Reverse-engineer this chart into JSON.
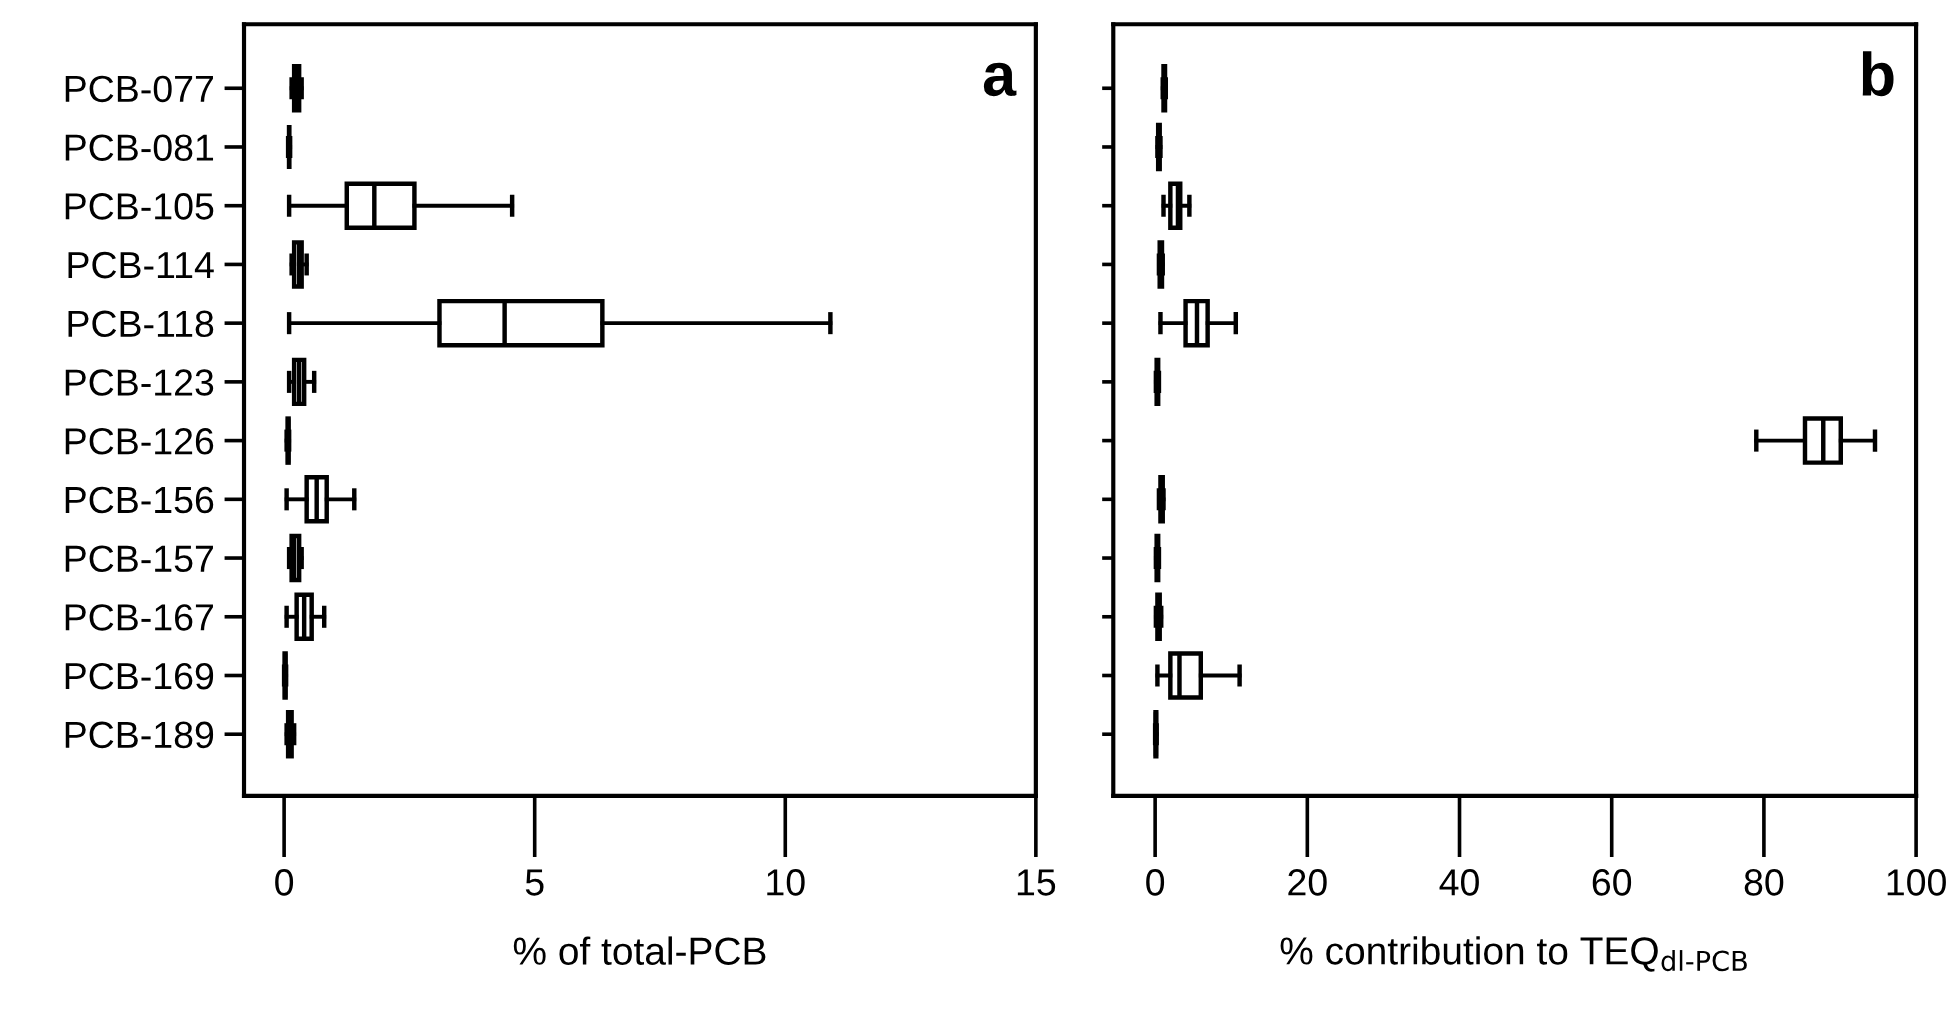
{
  "chart_data": [
    {
      "type": "box",
      "xlabel": "% of total-PCB",
      "orientation": "horizontal",
      "categories": [
        "PCB-077",
        "PCB-081",
        "PCB-105",
        "PCB-114",
        "PCB-118",
        "PCB-123",
        "PCB-126",
        "PCB-156",
        "PCB-157",
        "PCB-167",
        "PCB-169",
        "PCB-189"
      ],
      "boxes": [
        {
          "low": 0.15,
          "q1": 0.2,
          "median": 0.25,
          "q3": 0.3,
          "high": 0.35
        },
        {
          "low": 0.08,
          "q1": 0.1,
          "median": 0.1,
          "q3": 0.1,
          "high": 0.12
        },
        {
          "low": 0.1,
          "q1": 1.25,
          "median": 1.8,
          "q3": 2.6,
          "high": 4.55
        },
        {
          "low": 0.15,
          "q1": 0.2,
          "median": 0.3,
          "q3": 0.35,
          "high": 0.45
        },
        {
          "low": 0.1,
          "q1": 3.1,
          "median": 4.4,
          "q3": 6.35,
          "high": 10.9
        },
        {
          "low": 0.1,
          "q1": 0.2,
          "median": 0.3,
          "q3": 0.4,
          "high": 0.6
        },
        {
          "low": 0.05,
          "q1": 0.07,
          "median": 0.08,
          "q3": 0.09,
          "high": 0.1
        },
        {
          "low": 0.05,
          "q1": 0.45,
          "median": 0.65,
          "q3": 0.85,
          "high": 1.4
        },
        {
          "low": 0.1,
          "q1": 0.15,
          "median": 0.2,
          "q3": 0.3,
          "high": 0.35
        },
        {
          "low": 0.05,
          "q1": 0.25,
          "median": 0.4,
          "q3": 0.55,
          "high": 0.8
        },
        {
          "low": 0.0,
          "q1": 0.01,
          "median": 0.02,
          "q3": 0.03,
          "high": 0.04
        },
        {
          "low": 0.05,
          "q1": 0.08,
          "median": 0.1,
          "q3": 0.15,
          "high": 0.2
        }
      ],
      "xlim": [
        -0.8,
        15
      ],
      "xticks": [
        0,
        5,
        10,
        15
      ],
      "annotations": [
        "a"
      ],
      "grid": false
    },
    {
      "type": "box",
      "xlabel": "% contribution to TEQ$_{dl-PCB}$",
      "orientation": "horizontal",
      "tick_labels": "x",
      "categories": [
        null,
        null,
        null,
        null,
        null,
        null,
        null,
        null,
        null,
        null,
        null,
        null
      ],
      "boxes": [
        {
          "low": 1.0,
          "q1": 1.1,
          "median": 1.2,
          "q3": 1.3,
          "high": 1.4
        },
        {
          "low": 0.3,
          "q1": 0.4,
          "median": 0.5,
          "q3": 0.6,
          "high": 0.7
        },
        {
          "low": 1.1,
          "q1": 2.0,
          "median": 3.0,
          "q3": 3.3,
          "high": 4.5
        },
        {
          "low": 0.5,
          "q1": 0.6,
          "median": 0.8,
          "q3": 0.9,
          "high": 1.0
        },
        {
          "low": 0.7,
          "q1": 4.0,
          "median": 5.5,
          "q3": 6.9,
          "high": 10.6
        },
        {
          "low": 0.1,
          "q1": 0.2,
          "median": 0.3,
          "q3": 0.4,
          "high": 0.5
        },
        {
          "low": 79,
          "q1": 85.4,
          "median": 87.8,
          "q3": 90.1,
          "high": 94.6
        },
        {
          "low": 0.5,
          "q1": 0.7,
          "median": 0.8,
          "q3": 1.0,
          "high": 1.1
        },
        {
          "low": 0.1,
          "q1": 0.2,
          "median": 0.3,
          "q3": 0.4,
          "high": 0.5
        },
        {
          "low": 0.1,
          "q1": 0.3,
          "median": 0.5,
          "q3": 0.6,
          "high": 0.8
        },
        {
          "low": 0.3,
          "q1": 2.0,
          "median": 3.2,
          "q3": 6.0,
          "high": 11.1
        },
        {
          "low": 0.0,
          "q1": 0.05,
          "median": 0.1,
          "q3": 0.15,
          "high": 0.2
        }
      ],
      "xlim": [
        -5.5,
        100
      ],
      "xticks": [
        0,
        20,
        40,
        60,
        80,
        100
      ],
      "annotations": [
        "b"
      ],
      "grid": false
    }
  ]
}
